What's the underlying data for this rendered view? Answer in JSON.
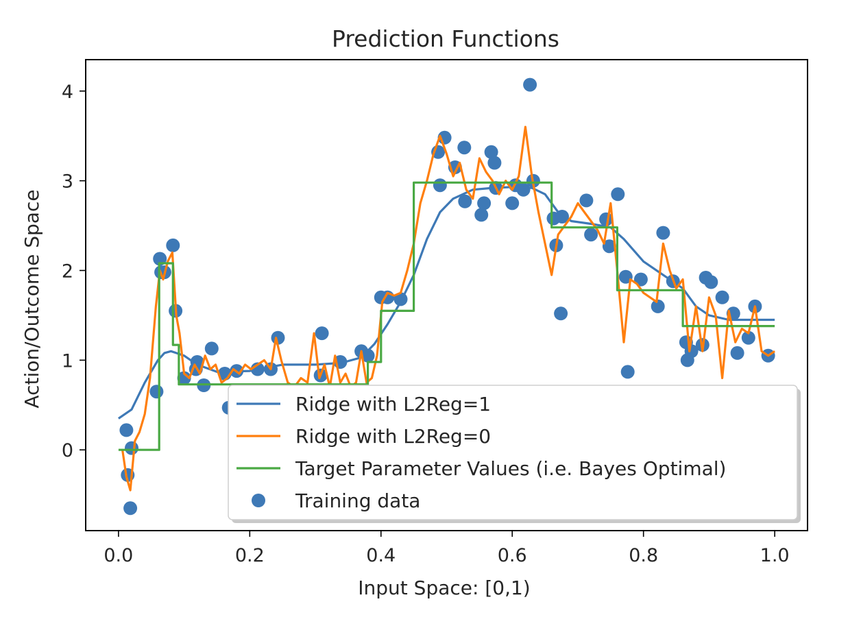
{
  "chart_data": {
    "type": "line",
    "title": "Prediction Functions",
    "xlabel": "Input Space: [0,1)",
    "ylabel": "Action/Outcome Space",
    "xlim": [
      -0.05,
      1.05
    ],
    "ylim": [
      -0.9,
      4.35
    ],
    "xticks": [
      0.0,
      0.2,
      0.4,
      0.6,
      0.8,
      1.0
    ],
    "xtick_labels": [
      "0.0",
      "0.2",
      "0.4",
      "0.6",
      "0.8",
      "1.0"
    ],
    "yticks": [
      0,
      1,
      2,
      3,
      4
    ],
    "ytick_labels": [
      "0",
      "1",
      "2",
      "3",
      "4"
    ],
    "grid": false,
    "legend_position": "lower-right",
    "legend": [
      {
        "label": "Ridge with L2Reg=1",
        "type": "line",
        "color": "#3e79b6"
      },
      {
        "label": "Ridge with L2Reg=0",
        "type": "line",
        "color": "#ff7f0e"
      },
      {
        "label": "Target Parameter Values (i.e. Bayes Optimal)",
        "type": "line",
        "color": "#4aa944"
      },
      {
        "label": "Training data",
        "type": "marker",
        "color": "#3e79b6"
      }
    ],
    "series": [
      {
        "name": "Ridge with L2Reg=1",
        "kind": "line",
        "color": "#3e79b6",
        "x": [
          0.0,
          0.02,
          0.04,
          0.06,
          0.07,
          0.08,
          0.1,
          0.12,
          0.15,
          0.2,
          0.25,
          0.3,
          0.34,
          0.37,
          0.39,
          0.41,
          0.43,
          0.45,
          0.47,
          0.49,
          0.51,
          0.54,
          0.57,
          0.6,
          0.63,
          0.65,
          0.67,
          0.69,
          0.72,
          0.75,
          0.77,
          0.8,
          0.83,
          0.86,
          0.88,
          0.9,
          0.93,
          0.96,
          1.0
        ],
        "y": [
          0.35,
          0.45,
          0.75,
          1.0,
          1.08,
          1.1,
          1.05,
          0.95,
          0.87,
          0.88,
          0.95,
          0.95,
          0.97,
          1.03,
          1.18,
          1.4,
          1.65,
          1.95,
          2.35,
          2.65,
          2.8,
          2.9,
          2.92,
          2.93,
          2.92,
          2.85,
          2.65,
          2.55,
          2.52,
          2.48,
          2.35,
          2.1,
          1.95,
          1.8,
          1.6,
          1.5,
          1.45,
          1.45,
          1.45
        ]
      },
      {
        "name": "Ridge with L2Reg=0",
        "kind": "line",
        "color": "#ff7f0e",
        "x": [
          0.006,
          0.012,
          0.018,
          0.025,
          0.032,
          0.04,
          0.048,
          0.057,
          0.063,
          0.068,
          0.075,
          0.082,
          0.088,
          0.093,
          0.1,
          0.108,
          0.116,
          0.124,
          0.132,
          0.14,
          0.148,
          0.157,
          0.166,
          0.175,
          0.184,
          0.193,
          0.202,
          0.212,
          0.222,
          0.232,
          0.24,
          0.248,
          0.258,
          0.268,
          0.278,
          0.288,
          0.298,
          0.306,
          0.314,
          0.322,
          0.33,
          0.338,
          0.346,
          0.354,
          0.362,
          0.37,
          0.378,
          0.386,
          0.394,
          0.402,
          0.41,
          0.42,
          0.43,
          0.44,
          0.45,
          0.46,
          0.47,
          0.48,
          0.49,
          0.5,
          0.51,
          0.52,
          0.53,
          0.54,
          0.55,
          0.56,
          0.57,
          0.58,
          0.59,
          0.6,
          0.61,
          0.62,
          0.63,
          0.64,
          0.65,
          0.66,
          0.67,
          0.68,
          0.69,
          0.7,
          0.71,
          0.72,
          0.73,
          0.74,
          0.75,
          0.76,
          0.77,
          0.78,
          0.79,
          0.8,
          0.81,
          0.82,
          0.83,
          0.84,
          0.85,
          0.86,
          0.87,
          0.88,
          0.89,
          0.9,
          0.91,
          0.92,
          0.93,
          0.94,
          0.95,
          0.96,
          0.97,
          0.98,
          0.99,
          1.0
        ],
        "y": [
          0.0,
          -0.3,
          -0.45,
          0.1,
          0.2,
          0.4,
          0.8,
          1.6,
          2.0,
          1.9,
          2.1,
          2.2,
          1.5,
          1.3,
          0.85,
          0.8,
          0.95,
          0.85,
          1.05,
          0.9,
          0.95,
          0.75,
          0.8,
          0.9,
          0.85,
          0.95,
          0.9,
          0.95,
          1.0,
          0.9,
          1.25,
          1.0,
          0.75,
          0.7,
          0.8,
          0.75,
          1.3,
          0.8,
          0.95,
          0.7,
          1.05,
          0.75,
          0.85,
          0.7,
          0.75,
          1.1,
          0.75,
          0.8,
          1.05,
          1.65,
          1.75,
          1.72,
          1.75,
          2.0,
          2.3,
          2.75,
          3.0,
          3.3,
          3.5,
          3.3,
          3.05,
          3.2,
          2.9,
          2.8,
          3.25,
          3.1,
          3.0,
          2.85,
          3.0,
          2.9,
          3.05,
          3.6,
          3.05,
          2.65,
          2.3,
          1.95,
          2.4,
          2.5,
          2.6,
          2.75,
          2.65,
          2.55,
          2.45,
          2.3,
          2.75,
          2.0,
          1.2,
          1.9,
          1.85,
          1.75,
          1.7,
          1.65,
          2.3,
          2.0,
          1.8,
          1.9,
          1.1,
          1.6,
          1.1,
          1.7,
          1.5,
          0.8,
          1.55,
          1.2,
          1.35,
          1.3,
          1.6,
          1.1,
          1.05,
          1.1
        ]
      },
      {
        "name": "Target Parameter Values (i.e. Bayes Optimal)",
        "kind": "step",
        "color": "#4aa944",
        "x": [
          0.0,
          0.062,
          0.062,
          0.083,
          0.083,
          0.092,
          0.092,
          0.38,
          0.38,
          0.4,
          0.4,
          0.45,
          0.45,
          0.66,
          0.66,
          0.76,
          0.76,
          0.86,
          0.86,
          1.0
        ],
        "y": [
          0.0,
          0.0,
          2.08,
          2.08,
          1.17,
          1.17,
          0.73,
          0.73,
          0.98,
          0.98,
          1.55,
          1.55,
          2.98,
          2.98,
          2.48,
          2.48,
          1.78,
          1.78,
          1.38,
          1.38
        ]
      },
      {
        "name": "Training data",
        "kind": "scatter",
        "color": "#3e79b6",
        "x": [
          0.012,
          0.014,
          0.018,
          0.02,
          0.058,
          0.063,
          0.065,
          0.07,
          0.083,
          0.087,
          0.1,
          0.12,
          0.118,
          0.13,
          0.142,
          0.162,
          0.168,
          0.18,
          0.212,
          0.232,
          0.243,
          0.31,
          0.308,
          0.338,
          0.37,
          0.38,
          0.4,
          0.41,
          0.43,
          0.487,
          0.49,
          0.497,
          0.513,
          0.527,
          0.528,
          0.553,
          0.557,
          0.568,
          0.573,
          0.575,
          0.6,
          0.605,
          0.617,
          0.627,
          0.632,
          0.663,
          0.667,
          0.674,
          0.676,
          0.713,
          0.72,
          0.743,
          0.748,
          0.761,
          0.773,
          0.776,
          0.796,
          0.822,
          0.83,
          0.845,
          0.865,
          0.867,
          0.873,
          0.89,
          0.895,
          0.903,
          0.92,
          0.937,
          0.943,
          0.96,
          0.97,
          0.99
        ],
        "y": [
          0.22,
          -0.28,
          -0.65,
          0.02,
          0.65,
          2.13,
          1.98,
          1.98,
          2.28,
          1.55,
          0.8,
          0.98,
          0.9,
          0.72,
          1.13,
          0.85,
          0.47,
          0.88,
          0.9,
          0.9,
          1.25,
          1.3,
          0.83,
          0.98,
          1.1,
          1.05,
          1.7,
          1.7,
          1.68,
          3.32,
          2.95,
          3.48,
          3.15,
          3.37,
          2.77,
          2.62,
          2.75,
          3.32,
          3.2,
          2.92,
          2.75,
          2.95,
          2.9,
          4.07,
          3.0,
          2.58,
          2.28,
          1.52,
          2.6,
          2.78,
          2.4,
          2.57,
          2.27,
          2.85,
          1.93,
          0.87,
          1.9,
          1.6,
          2.42,
          1.88,
          1.2,
          1.0,
          1.1,
          1.17,
          1.92,
          1.87,
          1.7,
          1.52,
          1.08,
          1.25,
          1.6,
          1.05
        ]
      }
    ]
  }
}
